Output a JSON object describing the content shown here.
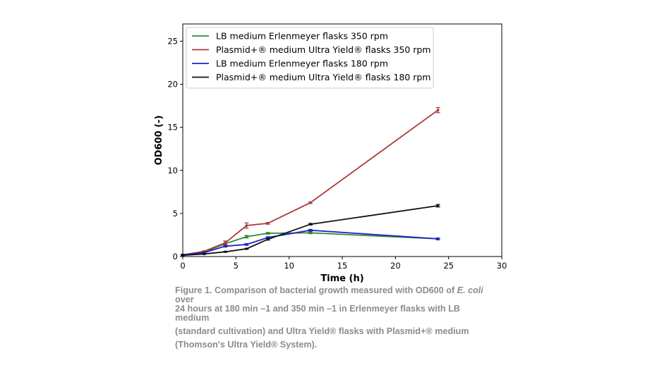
{
  "chart_data": {
    "type": "line",
    "title": "",
    "xlabel": "Time (h)",
    "ylabel": "OD600 (-)",
    "xlim": [
      0,
      30
    ],
    "ylim": [
      0,
      27
    ],
    "xticks": [
      0,
      5,
      10,
      15,
      20,
      25,
      30
    ],
    "yticks": [
      0,
      5,
      10,
      15,
      20,
      25
    ],
    "grid": false,
    "legend": "top-left",
    "series": [
      {
        "name": "LB medium Erlenmeyer flasks 350 rpm",
        "color": "#2e8b2e",
        "x": [
          0,
          2,
          4,
          6,
          8,
          12,
          24
        ],
        "y": [
          0.2,
          0.5,
          1.5,
          2.3,
          2.7,
          2.75,
          2.05
        ],
        "err": [
          0.05,
          0.05,
          0.3,
          0.15,
          0.1,
          0.1,
          0.1
        ]
      },
      {
        "name": "Plasmid+® medium Ultra Yield® flasks 350 rpm",
        "color": "#a83a3a",
        "x": [
          0,
          2,
          4,
          6,
          8,
          12,
          24
        ],
        "y": [
          0.2,
          0.6,
          1.6,
          3.6,
          3.85,
          6.25,
          17.0
        ],
        "err": [
          0.05,
          0.05,
          0.2,
          0.3,
          0.1,
          0.1,
          0.3
        ]
      },
      {
        "name": "LB medium Erlenmeyer flasks 180 rpm",
        "color": "#2020d0",
        "x": [
          0,
          2,
          4,
          6,
          8,
          12,
          24
        ],
        "y": [
          0.2,
          0.45,
          1.2,
          1.4,
          2.2,
          3.05,
          2.05
        ],
        "err": [
          0.05,
          0.05,
          0.1,
          0.1,
          0.1,
          0.1,
          0.1
        ]
      },
      {
        "name": "Plasmid+® medium Ultra Yield® flasks 180 rpm",
        "color": "#111111",
        "x": [
          0,
          2,
          4,
          6,
          8,
          12,
          24
        ],
        "y": [
          0.15,
          0.3,
          0.55,
          0.9,
          2.0,
          3.75,
          5.9
        ],
        "err": [
          0.05,
          0.05,
          0.05,
          0.05,
          0.1,
          0.1,
          0.15
        ]
      }
    ]
  },
  "caption": {
    "line1_pre": "Figure 1. Comparison of bacterial growth measured with OD600 of ",
    "line1_em": "E. coli",
    "line1b": "over",
    "line2": "24 hours at 180 min –1 and 350 min –1 in Erlenmeyer flasks with LB",
    "line2b": "medium",
    "line3": "(standard cultivation) and Ultra Yield® flasks with Plasmid+® medium",
    "line4": "(Thomson's Ultra Yield® System)."
  }
}
